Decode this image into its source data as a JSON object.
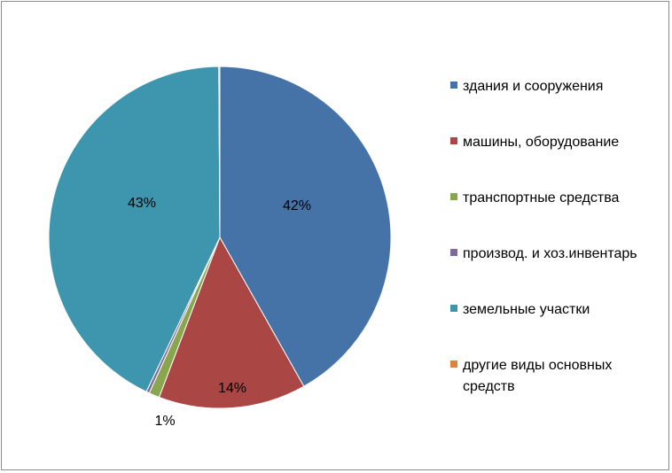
{
  "chart_data": {
    "type": "pie",
    "title": "",
    "slices": [
      {
        "label": "здания и сооружения",
        "value": 42,
        "value_label": "42%",
        "color": "#4572A7"
      },
      {
        "label": "машины, оборудование",
        "value": 14,
        "value_label": "14%",
        "color": "#AA4643"
      },
      {
        "label": "транспортные средства",
        "value": 1,
        "value_label": "1%",
        "color": "#89A54E"
      },
      {
        "label": "производ. и хоз.инвентарь",
        "value": 0.3,
        "value_label": "",
        "color": "#80699B"
      },
      {
        "label": "земельные участки",
        "value": 43,
        "value_label": "43%",
        "color": "#3D96AE"
      },
      {
        "label": "другие виды основных средств",
        "value": 0.1,
        "value_label": "",
        "color": "#DB843D"
      }
    ],
    "legend_position": "right"
  }
}
